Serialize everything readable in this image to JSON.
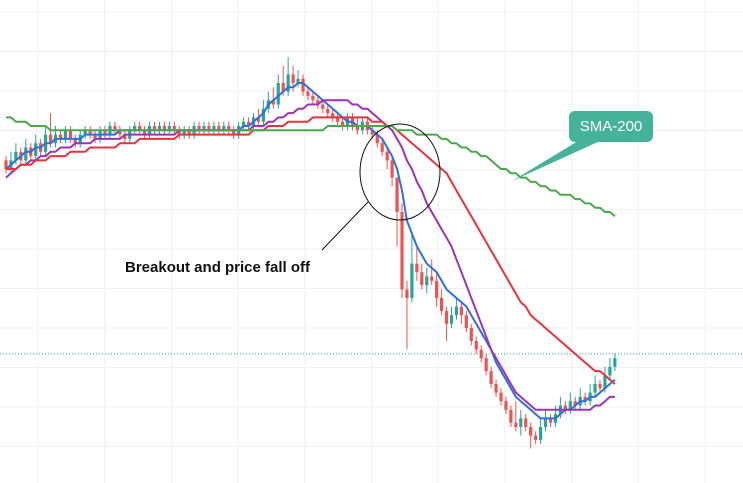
{
  "chart_data": {
    "type": "candlestick",
    "title": "",
    "xlabel": "",
    "ylabel": "",
    "grid": true,
    "ylim": [
      0,
      100
    ],
    "last_price_line": 27,
    "candles": [
      [
        72,
        70,
        73,
        69
      ],
      [
        70,
        72,
        74,
        69
      ],
      [
        72,
        74,
        76,
        71
      ],
      [
        74,
        72,
        75,
        71
      ],
      [
        72,
        75,
        77,
        71
      ],
      [
        75,
        73,
        76,
        72
      ],
      [
        73,
        76,
        78,
        72
      ],
      [
        76,
        74,
        77,
        73
      ],
      [
        74,
        78,
        80,
        73
      ],
      [
        78,
        76,
        83,
        75
      ],
      [
        76,
        78,
        80,
        75
      ],
      [
        78,
        77,
        79,
        76
      ],
      [
        77,
        79,
        80,
        76
      ],
      [
        79,
        77,
        80,
        76
      ],
      [
        77,
        76,
        78,
        75
      ],
      [
        76,
        78,
        79,
        75
      ],
      [
        78,
        79,
        80,
        77
      ],
      [
        79,
        78,
        80,
        77
      ],
      [
        78,
        77,
        79,
        76
      ],
      [
        77,
        79,
        80,
        76
      ],
      [
        79,
        78,
        80,
        77
      ],
      [
        78,
        80,
        81,
        77
      ],
      [
        80,
        79,
        81,
        78
      ],
      [
        79,
        78,
        80,
        77
      ],
      [
        78,
        77,
        79,
        76
      ],
      [
        77,
        79,
        80,
        76
      ],
      [
        79,
        80,
        81,
        78
      ],
      [
        80,
        79,
        81,
        78
      ],
      [
        79,
        78,
        80,
        77
      ],
      [
        78,
        80,
        81,
        77
      ],
      [
        80,
        79,
        81,
        78
      ],
      [
        79,
        80,
        81,
        78
      ],
      [
        80,
        79,
        81,
        78
      ],
      [
        79,
        80,
        81,
        78
      ],
      [
        80,
        79,
        81,
        78
      ],
      [
        79,
        78,
        80,
        77
      ],
      [
        78,
        79,
        80,
        77
      ],
      [
        79,
        78,
        80,
        77
      ],
      [
        78,
        80,
        81,
        77
      ],
      [
        80,
        79,
        81,
        78
      ],
      [
        79,
        80,
        81,
        78
      ],
      [
        80,
        79,
        81,
        78
      ],
      [
        79,
        80,
        81,
        78
      ],
      [
        80,
        79,
        81,
        78
      ],
      [
        79,
        80,
        81,
        78
      ],
      [
        80,
        79,
        81,
        78
      ],
      [
        79,
        78,
        80,
        77
      ],
      [
        78,
        80,
        81,
        77
      ],
      [
        80,
        81,
        82,
        79
      ],
      [
        81,
        80,
        82,
        79
      ],
      [
        80,
        82,
        83,
        79
      ],
      [
        82,
        81,
        84,
        80
      ],
      [
        81,
        84,
        86,
        80
      ],
      [
        84,
        86,
        88,
        83
      ],
      [
        86,
        85,
        89,
        84
      ],
      [
        85,
        90,
        92,
        84
      ],
      [
        90,
        88,
        94,
        87
      ],
      [
        88,
        92,
        96,
        87
      ],
      [
        92,
        90,
        94,
        88
      ],
      [
        90,
        91,
        93,
        89
      ],
      [
        91,
        88,
        92,
        87
      ],
      [
        88,
        87,
        89,
        86
      ],
      [
        87,
        86,
        88,
        85
      ],
      [
        86,
        85,
        87,
        84
      ],
      [
        85,
        84,
        86,
        83
      ],
      [
        84,
        83,
        85,
        82
      ],
      [
        83,
        82,
        84,
        81
      ],
      [
        82,
        81,
        83,
        80
      ],
      [
        81,
        80,
        82,
        79
      ],
      [
        80,
        82,
        83,
        79
      ],
      [
        82,
        80,
        83,
        79
      ],
      [
        80,
        79,
        82,
        78
      ],
      [
        79,
        81,
        82,
        78
      ],
      [
        81,
        79,
        82,
        78
      ],
      [
        79,
        78,
        80,
        77
      ],
      [
        78,
        76,
        79,
        75
      ],
      [
        76,
        74,
        77,
        73
      ],
      [
        74,
        72,
        75,
        70
      ],
      [
        72,
        68,
        73,
        66
      ],
      [
        68,
        60,
        68,
        52
      ],
      [
        60,
        42,
        62,
        40
      ],
      [
        42,
        40,
        44,
        28
      ],
      [
        40,
        48,
        55,
        39
      ],
      [
        48,
        46,
        52,
        44
      ],
      [
        46,
        43,
        48,
        42
      ],
      [
        43,
        45,
        47,
        41
      ],
      [
        45,
        44,
        49,
        43
      ],
      [
        44,
        40,
        46,
        38
      ],
      [
        40,
        37,
        42,
        36
      ],
      [
        37,
        34,
        38,
        30
      ],
      [
        34,
        36,
        38,
        33
      ],
      [
        36,
        38,
        40,
        35
      ],
      [
        38,
        36,
        39,
        34
      ],
      [
        36,
        33,
        37,
        32
      ],
      [
        33,
        30,
        34,
        29
      ],
      [
        30,
        28,
        31,
        27
      ],
      [
        28,
        26,
        29,
        25
      ],
      [
        26,
        23,
        27,
        22
      ],
      [
        23,
        20,
        24,
        19
      ],
      [
        20,
        18,
        21,
        17
      ],
      [
        18,
        16,
        19,
        15
      ],
      [
        16,
        14,
        17,
        13
      ],
      [
        14,
        11,
        15,
        10
      ],
      [
        11,
        10,
        16,
        9
      ],
      [
        10,
        12,
        14,
        8
      ],
      [
        12,
        10,
        13,
        9
      ],
      [
        10,
        8,
        11,
        5
      ],
      [
        8,
        7,
        9,
        6
      ],
      [
        7,
        10,
        12,
        6
      ],
      [
        10,
        12,
        14,
        9
      ],
      [
        12,
        11,
        13,
        10
      ],
      [
        11,
        13,
        15,
        10
      ],
      [
        13,
        15,
        17,
        12
      ],
      [
        15,
        14,
        16,
        13
      ],
      [
        14,
        16,
        18,
        13
      ],
      [
        16,
        15,
        17,
        14
      ],
      [
        15,
        17,
        19,
        14
      ],
      [
        17,
        16,
        18,
        15
      ],
      [
        16,
        18,
        20,
        15
      ],
      [
        18,
        20,
        22,
        17
      ],
      [
        20,
        19,
        21,
        18
      ],
      [
        19,
        22,
        24,
        18
      ],
      [
        22,
        24,
        26,
        21
      ],
      [
        24,
        26,
        27,
        23
      ]
    ],
    "series": [
      {
        "name": "",
        "color": "#2f6fe0",
        "values": [
          70,
          71,
          72,
          73,
          74,
          74,
          75,
          75,
          76,
          76,
          77,
          77,
          77,
          77,
          77,
          77,
          78,
          78,
          78,
          78,
          78,
          78,
          78,
          79,
          79,
          79,
          79,
          79,
          79,
          79,
          79,
          79,
          79,
          79,
          79,
          79,
          79,
          79,
          79,
          79,
          79,
          79,
          79,
          79,
          79,
          79,
          79,
          79,
          80,
          80,
          81,
          82,
          83,
          85,
          86,
          87,
          88,
          89,
          89,
          90,
          90,
          89,
          88,
          87,
          86,
          85,
          84,
          83,
          82,
          81,
          81,
          80,
          80,
          80,
          79,
          78,
          77,
          75,
          73,
          70,
          65,
          58,
          55,
          52,
          50,
          48,
          47,
          46,
          44,
          42,
          41,
          40,
          39,
          38,
          36,
          34,
          32,
          30,
          28,
          25,
          23,
          21,
          19,
          17,
          16,
          15,
          14,
          13,
          12,
          12,
          12,
          12,
          13,
          14,
          14,
          15,
          16,
          16,
          17,
          17,
          18,
          19,
          20,
          21
        ]
      },
      {
        "name": "",
        "color": "#9b34b5",
        "values": [
          68,
          69,
          70,
          71,
          71,
          72,
          72,
          73,
          73,
          74,
          74,
          75,
          75,
          75,
          76,
          76,
          76,
          76,
          77,
          77,
          77,
          77,
          77,
          77,
          78,
          78,
          78,
          78,
          78,
          78,
          78,
          78,
          78,
          78,
          78,
          79,
          79,
          79,
          79,
          79,
          79,
          79,
          79,
          79,
          79,
          79,
          79,
          79,
          79,
          79,
          80,
          80,
          80,
          81,
          81,
          82,
          82,
          83,
          83,
          84,
          84,
          85,
          85,
          85,
          86,
          86,
          86,
          86,
          86,
          86,
          85,
          85,
          84,
          84,
          83,
          82,
          81,
          80,
          79,
          77,
          75,
          72,
          70,
          67,
          65,
          62,
          60,
          58,
          56,
          54,
          52,
          49,
          46,
          43,
          40,
          37,
          34,
          31,
          28,
          26,
          24,
          22,
          20,
          18,
          17,
          16,
          15,
          14,
          14,
          14,
          14,
          14,
          14,
          14,
          14,
          14,
          14,
          14,
          14,
          15,
          15,
          16,
          17,
          17
        ]
      },
      {
        "name": "",
        "color": "#e8333c",
        "values": [
          70,
          70,
          70,
          71,
          71,
          71,
          72,
          72,
          72,
          73,
          73,
          73,
          73,
          74,
          74,
          74,
          74,
          75,
          75,
          75,
          75,
          75,
          75,
          76,
          76,
          76,
          76,
          77,
          77,
          77,
          77,
          77,
          77,
          77,
          77,
          78,
          78,
          78,
          78,
          78,
          78,
          78,
          78,
          78,
          78,
          78,
          78,
          78,
          78,
          78,
          79,
          79,
          79,
          80,
          80,
          80,
          80,
          81,
          81,
          81,
          81,
          81,
          82,
          82,
          82,
          82,
          82,
          82,
          82,
          82,
          82,
          82,
          82,
          82,
          81,
          81,
          81,
          80,
          80,
          79,
          78,
          77,
          76,
          75,
          74,
          73,
          72,
          71,
          70,
          69,
          67,
          65,
          63,
          61,
          59,
          57,
          55,
          53,
          51,
          49,
          47,
          45,
          43,
          41,
          39,
          38,
          36,
          35,
          34,
          33,
          32,
          31,
          30,
          29,
          28,
          27,
          26,
          25,
          24,
          23,
          23,
          22,
          21,
          20
        ]
      },
      {
        "name": "SMA-200",
        "color": "#4aa84a",
        "values": [
          82,
          82,
          81,
          81,
          81,
          80,
          80,
          80,
          80,
          79,
          79,
          79,
          79,
          79,
          79,
          79,
          79,
          79,
          79,
          79,
          79,
          79,
          79,
          79,
          79,
          79,
          79,
          79,
          79,
          79,
          79,
          79,
          79,
          79,
          79,
          79,
          79,
          79,
          79,
          79,
          79,
          79,
          79,
          79,
          79,
          79,
          79,
          79,
          79,
          79,
          79,
          79,
          79,
          79,
          79,
          79,
          79,
          79,
          79,
          79,
          79,
          79,
          79,
          79,
          79,
          80,
          80,
          80,
          80,
          80,
          80,
          80,
          80,
          80,
          80,
          80,
          80,
          80,
          80,
          79,
          79,
          79,
          79,
          78,
          78,
          78,
          78,
          78,
          77,
          77,
          76,
          76,
          75,
          75,
          74,
          74,
          73,
          73,
          72,
          71,
          70,
          70,
          69,
          69,
          68,
          68,
          67,
          67,
          66,
          66,
          65,
          65,
          64,
          64,
          64,
          63,
          63,
          62,
          62,
          61,
          61,
          60,
          60,
          59
        ]
      }
    ],
    "annotations": [
      {
        "text": "Breakout and price fall off",
        "type": "label-with-pointer"
      },
      {
        "text": "SMA-200",
        "type": "callout"
      }
    ],
    "highlight": "circle"
  },
  "colors": {
    "up": "#26a69a",
    "down": "#ef5350",
    "grid": "#eef0f3",
    "price_line": "#26a69a",
    "callout_bg": "#44b39a"
  }
}
